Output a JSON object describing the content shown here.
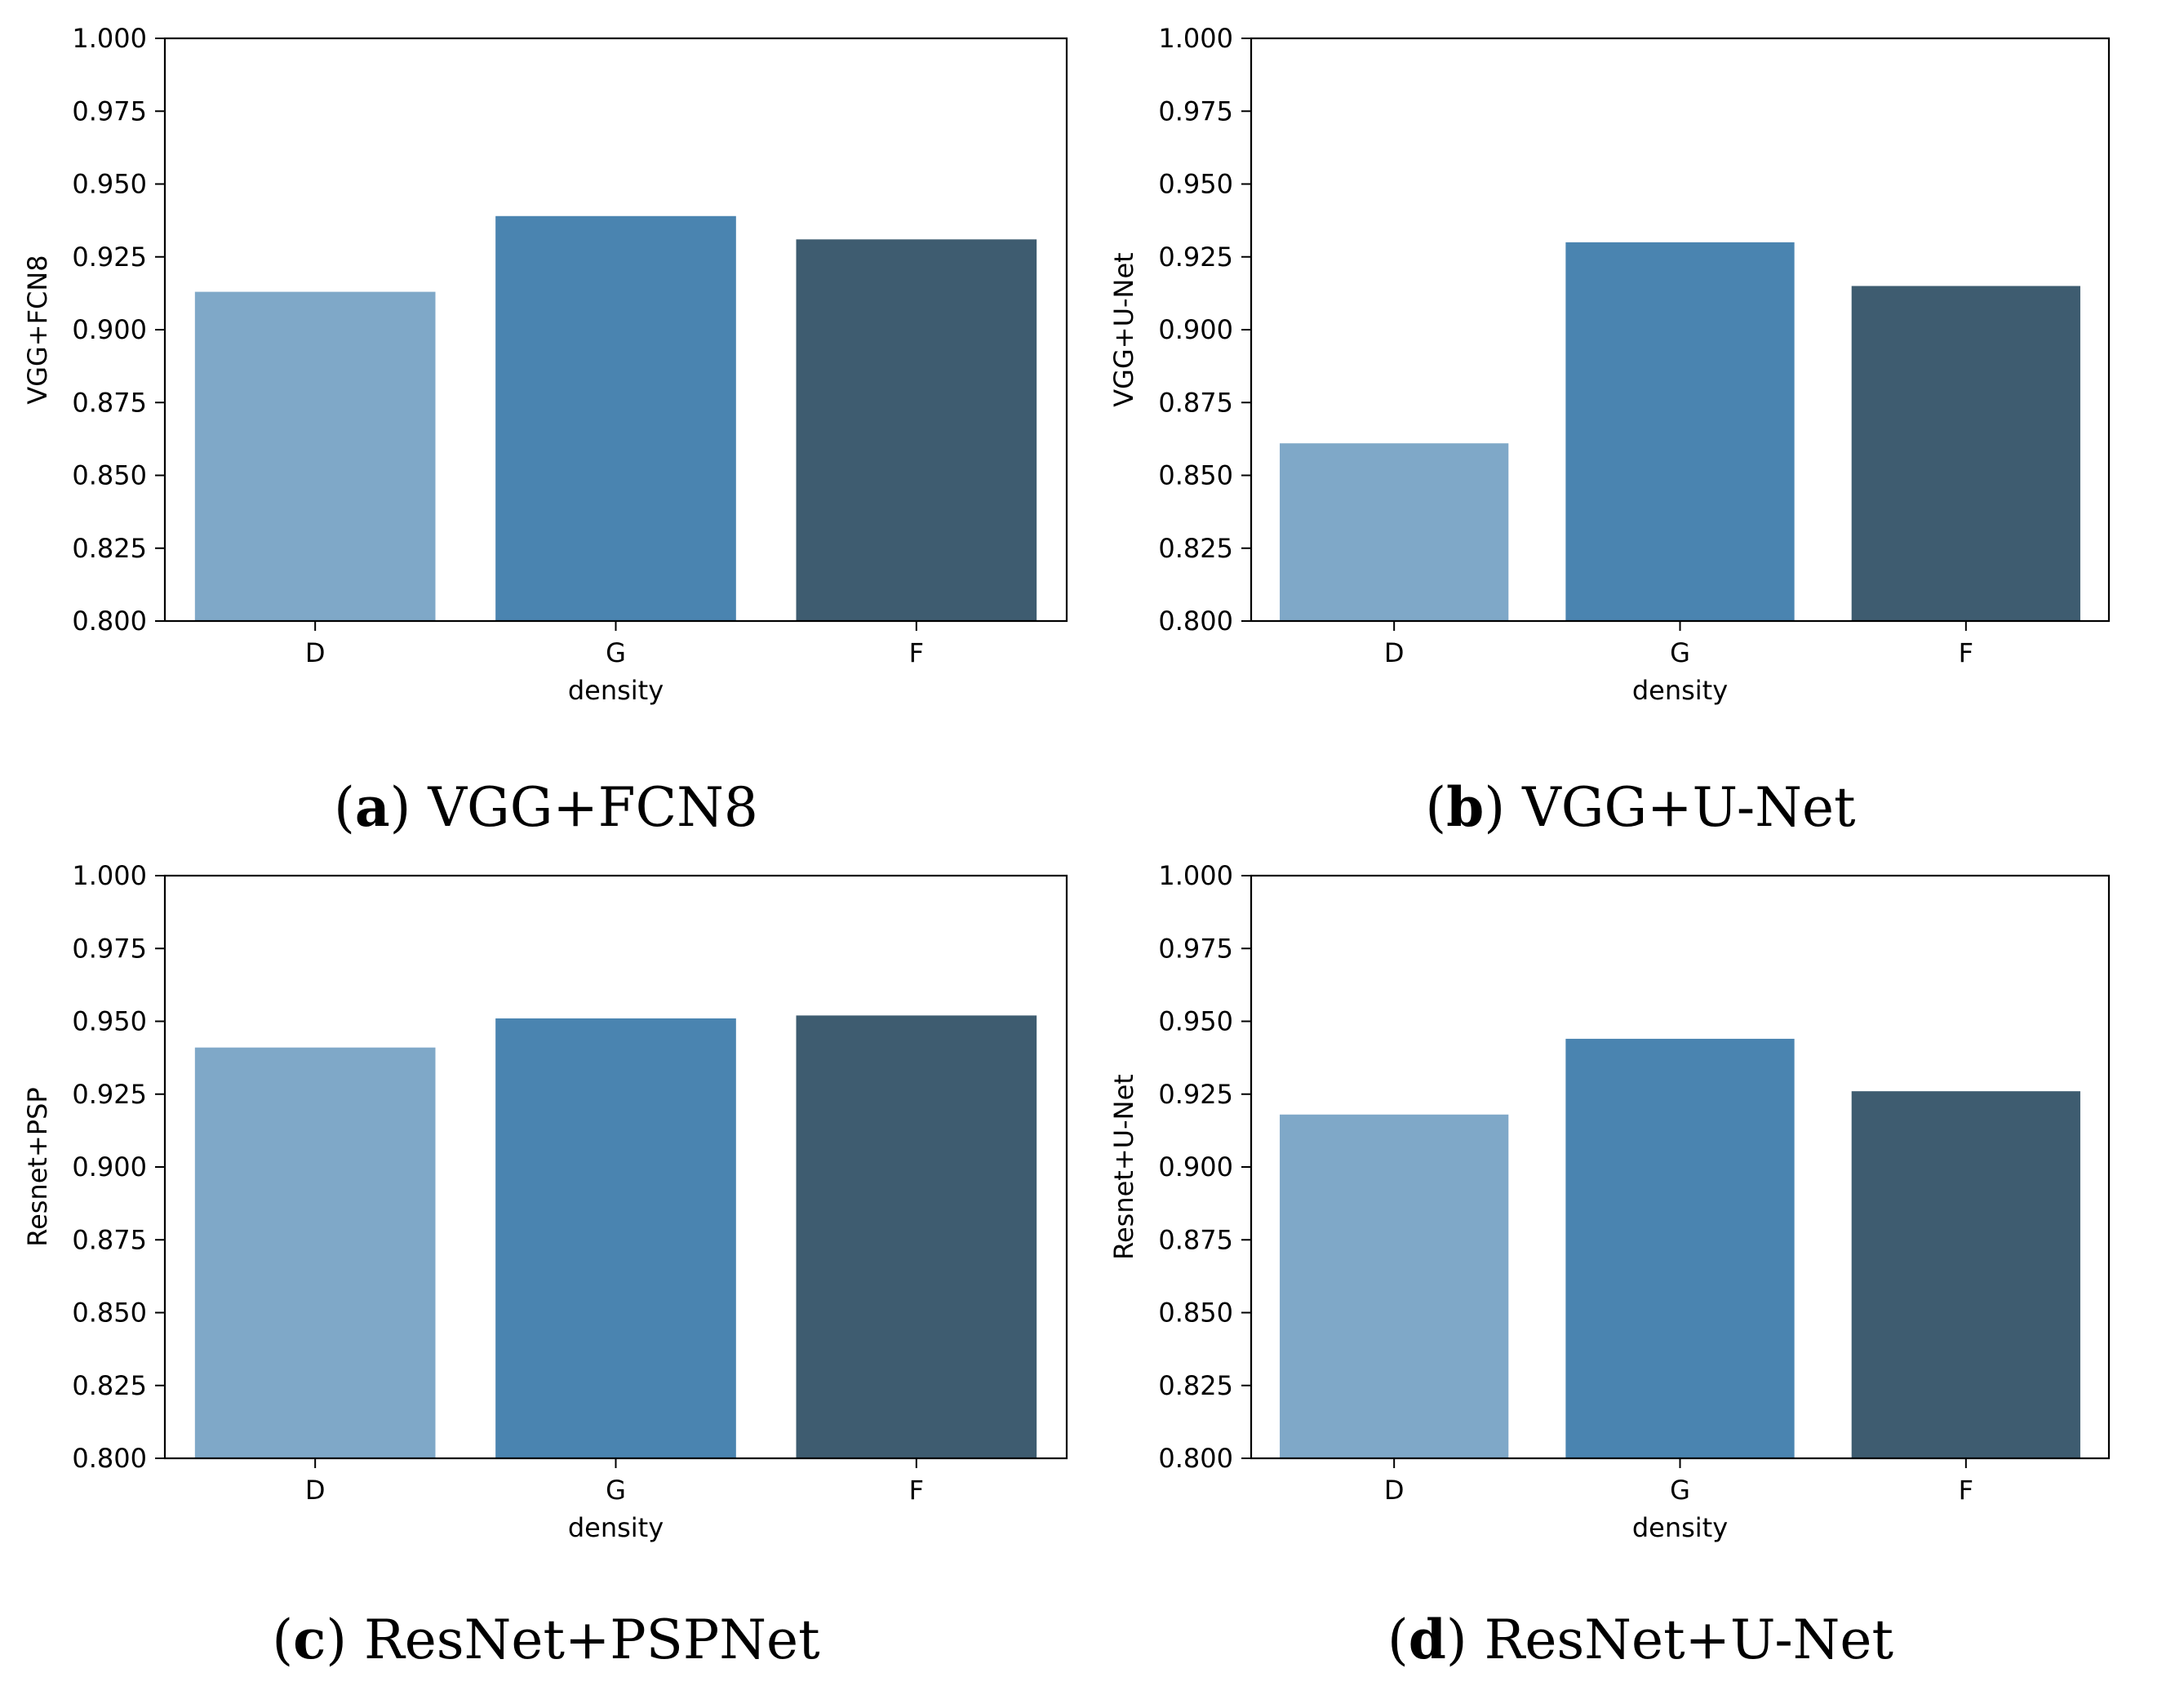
{
  "figure": {
    "bar_colors": [
      "#7fa8c8",
      "#4a84b0",
      "#3e5c70"
    ],
    "axis_color": "#000000"
  },
  "chart_data": [
    {
      "type": "bar",
      "caption_letter": "a",
      "caption_text": "VGG+FCN8",
      "title": "",
      "xlabel": "density",
      "ylabel": "VGG+FCN8",
      "categories": [
        "D",
        "G",
        "F"
      ],
      "values": [
        0.913,
        0.939,
        0.931
      ],
      "ylim": [
        0.8,
        1.0
      ],
      "yticks": [
        "0.800",
        "0.825",
        "0.850",
        "0.875",
        "0.900",
        "0.925",
        "0.950",
        "0.975",
        "1.000"
      ],
      "grid": false,
      "legend": "none"
    },
    {
      "type": "bar",
      "caption_letter": "b",
      "caption_text": "VGG+U-Net",
      "title": "",
      "xlabel": "density",
      "ylabel": "VGG+U-Net",
      "categories": [
        "D",
        "G",
        "F"
      ],
      "values": [
        0.861,
        0.93,
        0.915
      ],
      "ylim": [
        0.8,
        1.0
      ],
      "yticks": [
        "0.800",
        "0.825",
        "0.850",
        "0.875",
        "0.900",
        "0.925",
        "0.950",
        "0.975",
        "1.000"
      ],
      "grid": false,
      "legend": "none"
    },
    {
      "type": "bar",
      "caption_letter": "c",
      "caption_text": "ResNet+PSPNet",
      "title": "",
      "xlabel": "density",
      "ylabel": "Resnet+PSP",
      "categories": [
        "D",
        "G",
        "F"
      ],
      "values": [
        0.941,
        0.951,
        0.952
      ],
      "ylim": [
        0.8,
        1.0
      ],
      "yticks": [
        "0.800",
        "0.825",
        "0.850",
        "0.875",
        "0.900",
        "0.925",
        "0.950",
        "0.975",
        "1.000"
      ],
      "grid": false,
      "legend": "none"
    },
    {
      "type": "bar",
      "caption_letter": "d",
      "caption_text": "ResNet+U-Net",
      "title": "",
      "xlabel": "density",
      "ylabel": "Resnet+U-Net",
      "categories": [
        "D",
        "G",
        "F"
      ],
      "values": [
        0.918,
        0.944,
        0.926
      ],
      "ylim": [
        0.8,
        1.0
      ],
      "yticks": [
        "0.800",
        "0.825",
        "0.850",
        "0.875",
        "0.900",
        "0.925",
        "0.950",
        "0.975",
        "1.000"
      ],
      "grid": false,
      "legend": "none"
    }
  ]
}
